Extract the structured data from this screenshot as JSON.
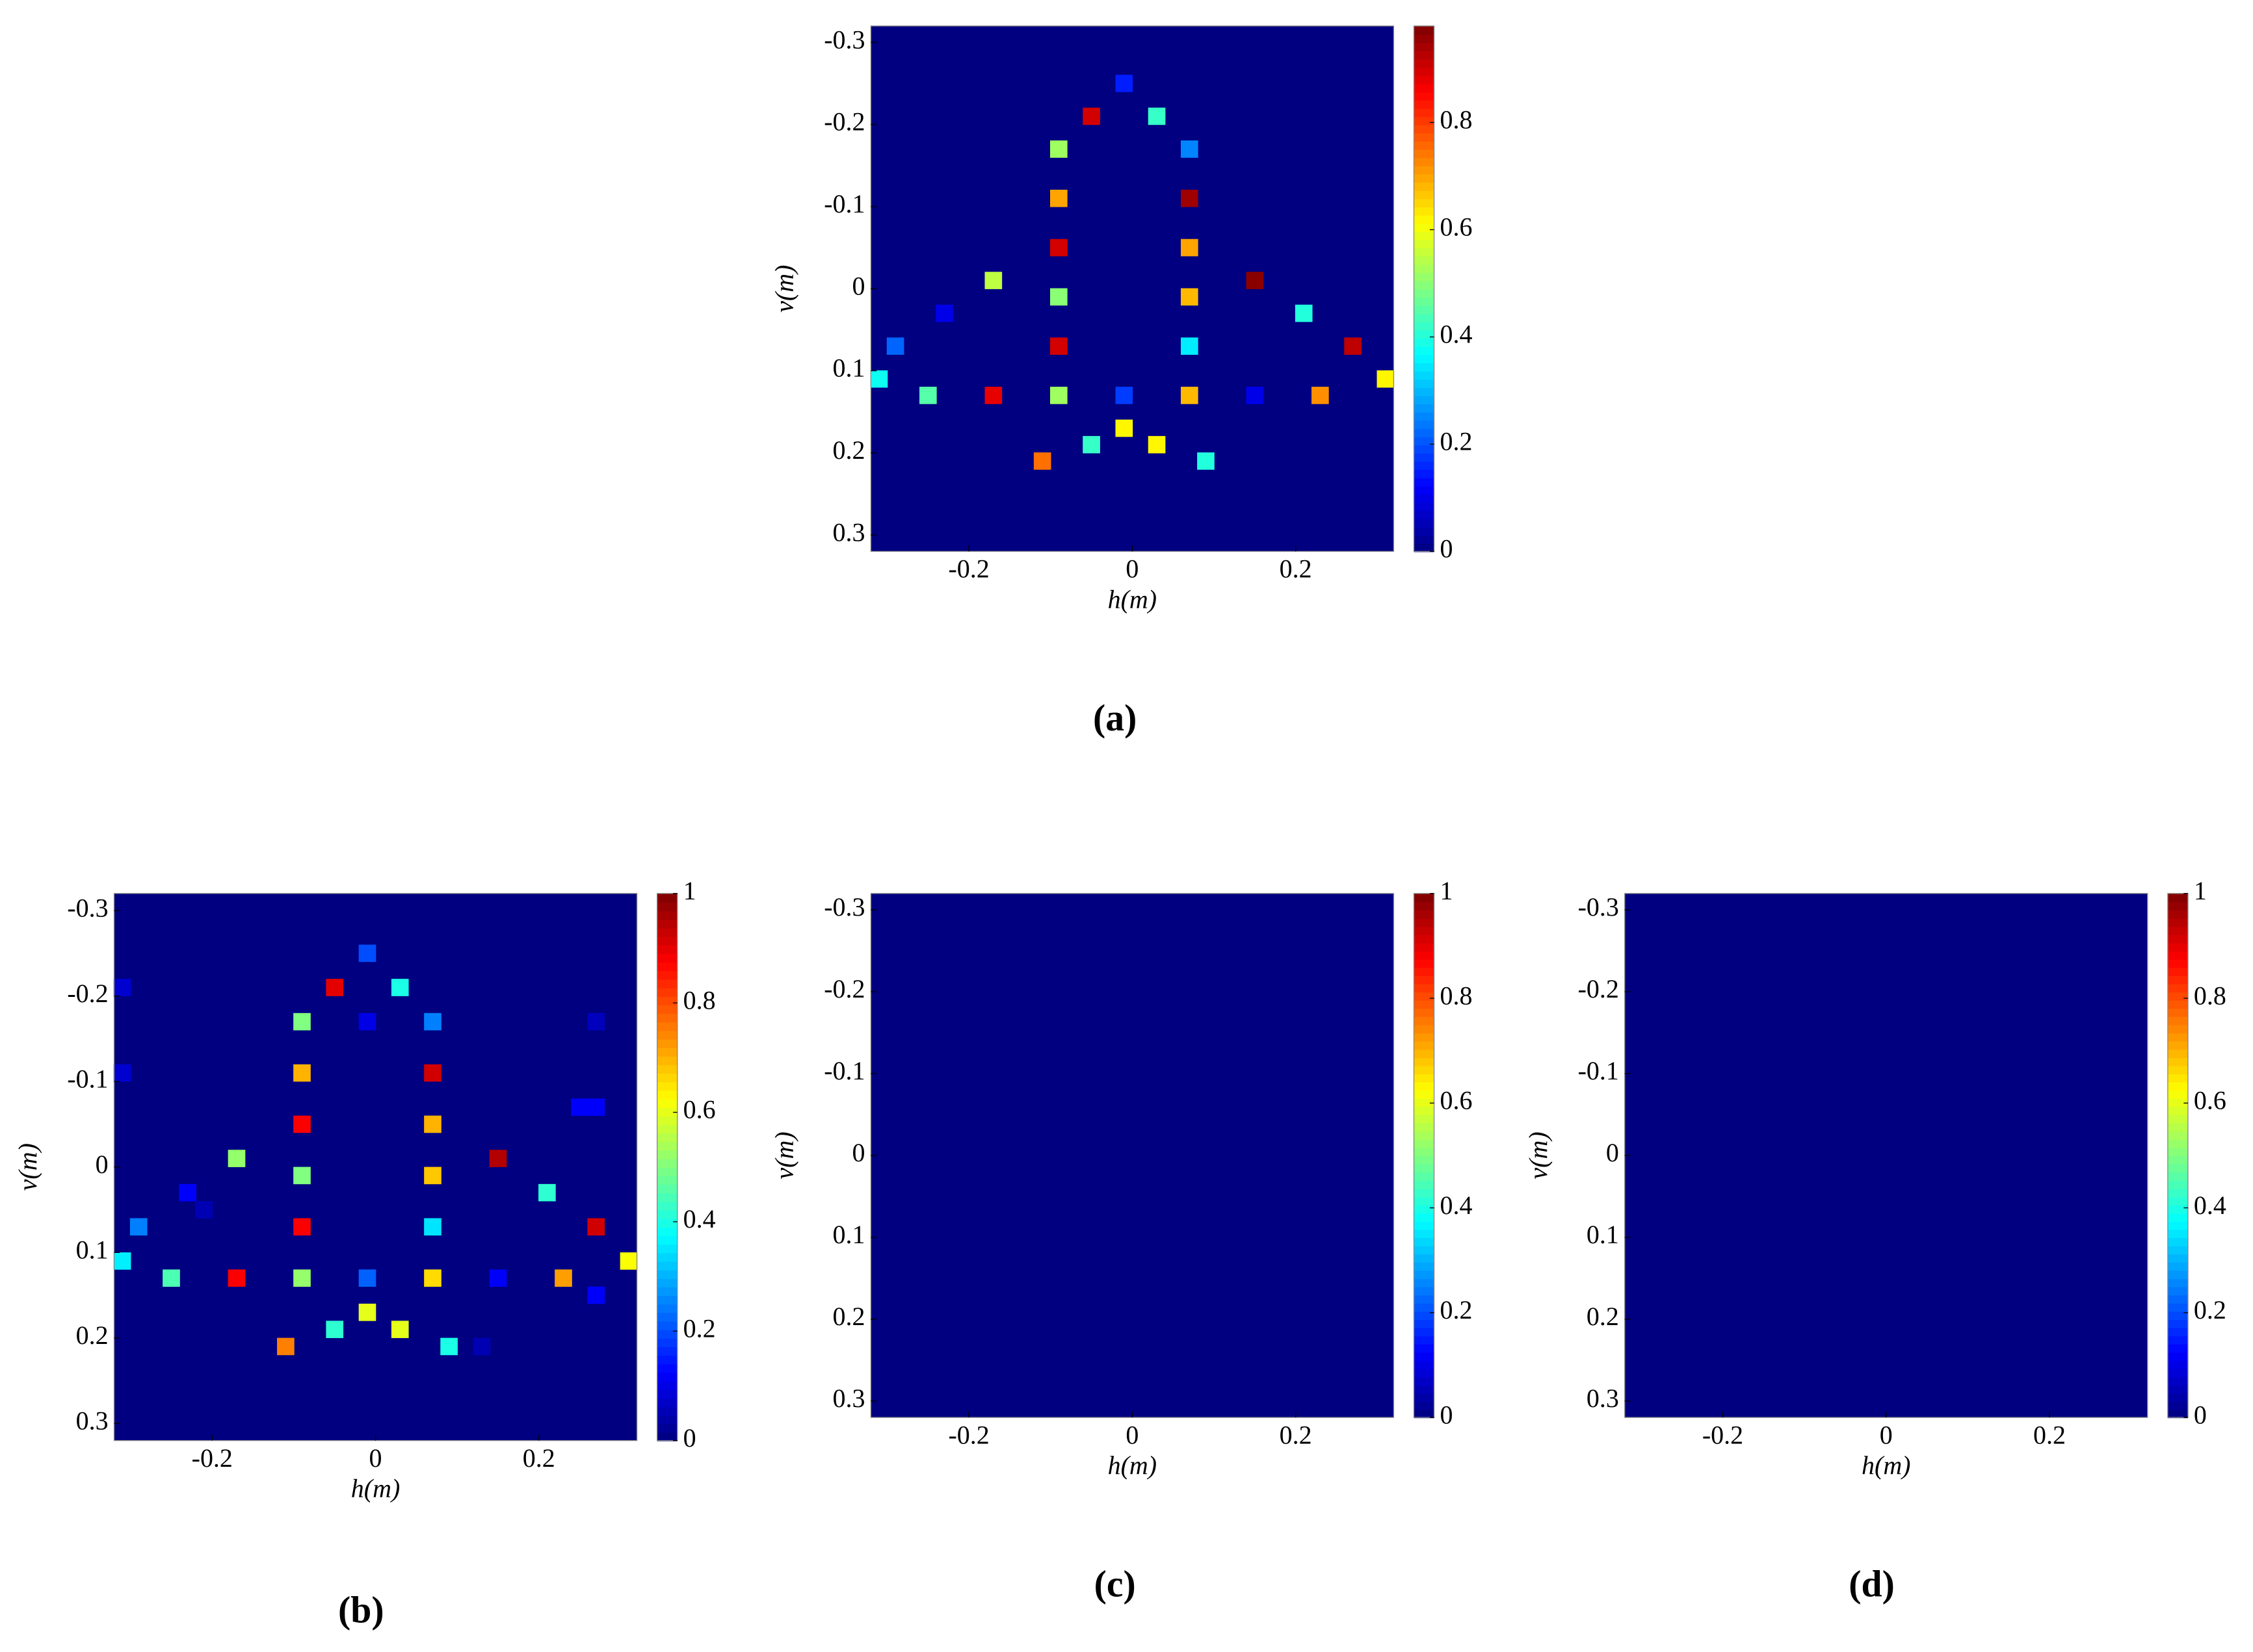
{
  "chart_data": [
    {
      "type": "heatmap",
      "caption": "(a)",
      "xlabel": "h(m)",
      "ylabel": "v(m)",
      "colormap": "jet",
      "y_reversed": true,
      "xlim": [
        -0.32,
        0.32
      ],
      "xticks": [
        -0.2,
        0,
        0.2
      ],
      "ylim": [
        -0.32,
        0.32
      ],
      "yticks": [
        -0.3,
        -0.2,
        -0.1,
        0,
        0.1,
        0.2,
        0.3
      ],
      "clim": [
        0,
        0.98
      ],
      "cticks": [
        0,
        0.2,
        0.4,
        0.6,
        0.8
      ],
      "x": [
        -0.01,
        -0.05,
        0.03,
        -0.09,
        0.07,
        -0.09,
        0.07,
        -0.09,
        0.07,
        -0.17,
        -0.09,
        0.07,
        0.15,
        -0.23,
        0.21,
        -0.29,
        -0.09,
        0.07,
        0.27,
        -0.31,
        0.31,
        -0.25,
        -0.17,
        -0.09,
        -0.01,
        0.07,
        0.15,
        0.23,
        -0.01,
        -0.05,
        0.03,
        -0.11,
        0.09
      ],
      "y": [
        -0.25,
        -0.21,
        -0.21,
        -0.17,
        -0.17,
        -0.11,
        -0.11,
        -0.05,
        -0.05,
        -0.01,
        0.01,
        0.01,
        -0.01,
        0.03,
        0.03,
        0.07,
        0.07,
        0.07,
        0.07,
        0.11,
        0.11,
        0.13,
        0.13,
        0.13,
        0.13,
        0.13,
        0.13,
        0.13,
        0.17,
        0.19,
        0.19,
        0.21,
        0.21
      ],
      "values": [
        0.15,
        0.9,
        0.42,
        0.52,
        0.25,
        0.7,
        0.95,
        0.9,
        0.7,
        0.55,
        0.5,
        0.68,
        0.97,
        0.1,
        0.4,
        0.22,
        0.9,
        0.35,
        0.92,
        0.38,
        0.62,
        0.45,
        0.88,
        0.52,
        0.18,
        0.68,
        0.1,
        0.72,
        0.62,
        0.42,
        0.62,
        0.75,
        0.4
      ]
    },
    {
      "type": "heatmap",
      "caption": "(b)",
      "xlabel": "h(m)",
      "ylabel": "v(m)",
      "colormap": "jet",
      "y_reversed": true,
      "xlim": [
        -0.32,
        0.32
      ],
      "xticks": [
        -0.2,
        0,
        0.2
      ],
      "ylim": [
        -0.32,
        0.32
      ],
      "yticks": [
        -0.3,
        -0.2,
        -0.1,
        0,
        0.1,
        0.2,
        0.3
      ],
      "clim": [
        0,
        1
      ],
      "cticks": [
        0,
        0.2,
        0.4,
        0.6,
        0.8,
        1
      ],
      "x": [
        -0.01,
        -0.05,
        0.03,
        -0.09,
        0.07,
        -0.09,
        0.07,
        -0.09,
        0.07,
        -0.17,
        -0.09,
        0.07,
        0.15,
        -0.23,
        0.21,
        -0.29,
        -0.09,
        0.07,
        0.27,
        -0.31,
        0.31,
        -0.25,
        -0.17,
        -0.09,
        -0.01,
        0.07,
        0.15,
        0.23,
        -0.01,
        -0.05,
        0.03,
        -0.11,
        0.09,
        -0.31,
        -0.31,
        -0.01,
        0.27,
        0.25,
        0.27,
        0.27,
        -0.21,
        0.13
      ],
      "y": [
        -0.25,
        -0.21,
        -0.21,
        -0.17,
        -0.17,
        -0.11,
        -0.11,
        -0.05,
        -0.05,
        -0.01,
        0.01,
        0.01,
        -0.01,
        0.03,
        0.03,
        0.07,
        0.07,
        0.07,
        0.07,
        0.11,
        0.11,
        0.13,
        0.13,
        0.13,
        0.13,
        0.13,
        0.13,
        0.13,
        0.17,
        0.19,
        0.19,
        0.21,
        0.21,
        -0.21,
        -0.11,
        -0.17,
        -0.17,
        -0.07,
        -0.07,
        0.15,
        0.05,
        0.21
      ],
      "values": [
        0.2,
        0.9,
        0.4,
        0.5,
        0.25,
        0.7,
        0.92,
        0.88,
        0.7,
        0.52,
        0.5,
        0.68,
        0.95,
        0.12,
        0.42,
        0.25,
        0.88,
        0.35,
        0.92,
        0.36,
        0.62,
        0.45,
        0.88,
        0.52,
        0.22,
        0.66,
        0.12,
        0.72,
        0.6,
        0.42,
        0.6,
        0.75,
        0.4,
        0.08,
        0.08,
        0.1,
        0.06,
        0.12,
        0.12,
        0.12,
        0.05,
        0.05
      ]
    },
    {
      "type": "heatmap",
      "caption": "(c)",
      "xlabel": "h(m)",
      "ylabel": "v(m)",
      "colormap": "jet",
      "y_reversed": true,
      "xlim": [
        -0.32,
        0.32
      ],
      "xticks": [
        -0.2,
        0,
        0.2
      ],
      "ylim": [
        -0.32,
        0.32
      ],
      "yticks": [
        -0.3,
        -0.2,
        -0.1,
        0,
        0.1,
        0.2,
        0.3
      ],
      "clim": [
        0,
        1
      ],
      "cticks": [
        0,
        0.2,
        0.4,
        0.6,
        0.8,
        1
      ],
      "x": [],
      "y": [],
      "values": []
    },
    {
      "type": "heatmap",
      "caption": "(d)",
      "xlabel": "h(m)",
      "ylabel": "v(m)",
      "colormap": "jet",
      "y_reversed": true,
      "xlim": [
        -0.32,
        0.32
      ],
      "xticks": [
        -0.2,
        0,
        0.2
      ],
      "ylim": [
        -0.32,
        0.32
      ],
      "yticks": [
        -0.3,
        -0.2,
        -0.1,
        0,
        0.1,
        0.2,
        0.3
      ],
      "clim": [
        0,
        1
      ],
      "cticks": [
        0,
        0.2,
        0.4,
        0.6,
        0.8,
        1
      ],
      "x": [],
      "y": [],
      "values": []
    }
  ]
}
